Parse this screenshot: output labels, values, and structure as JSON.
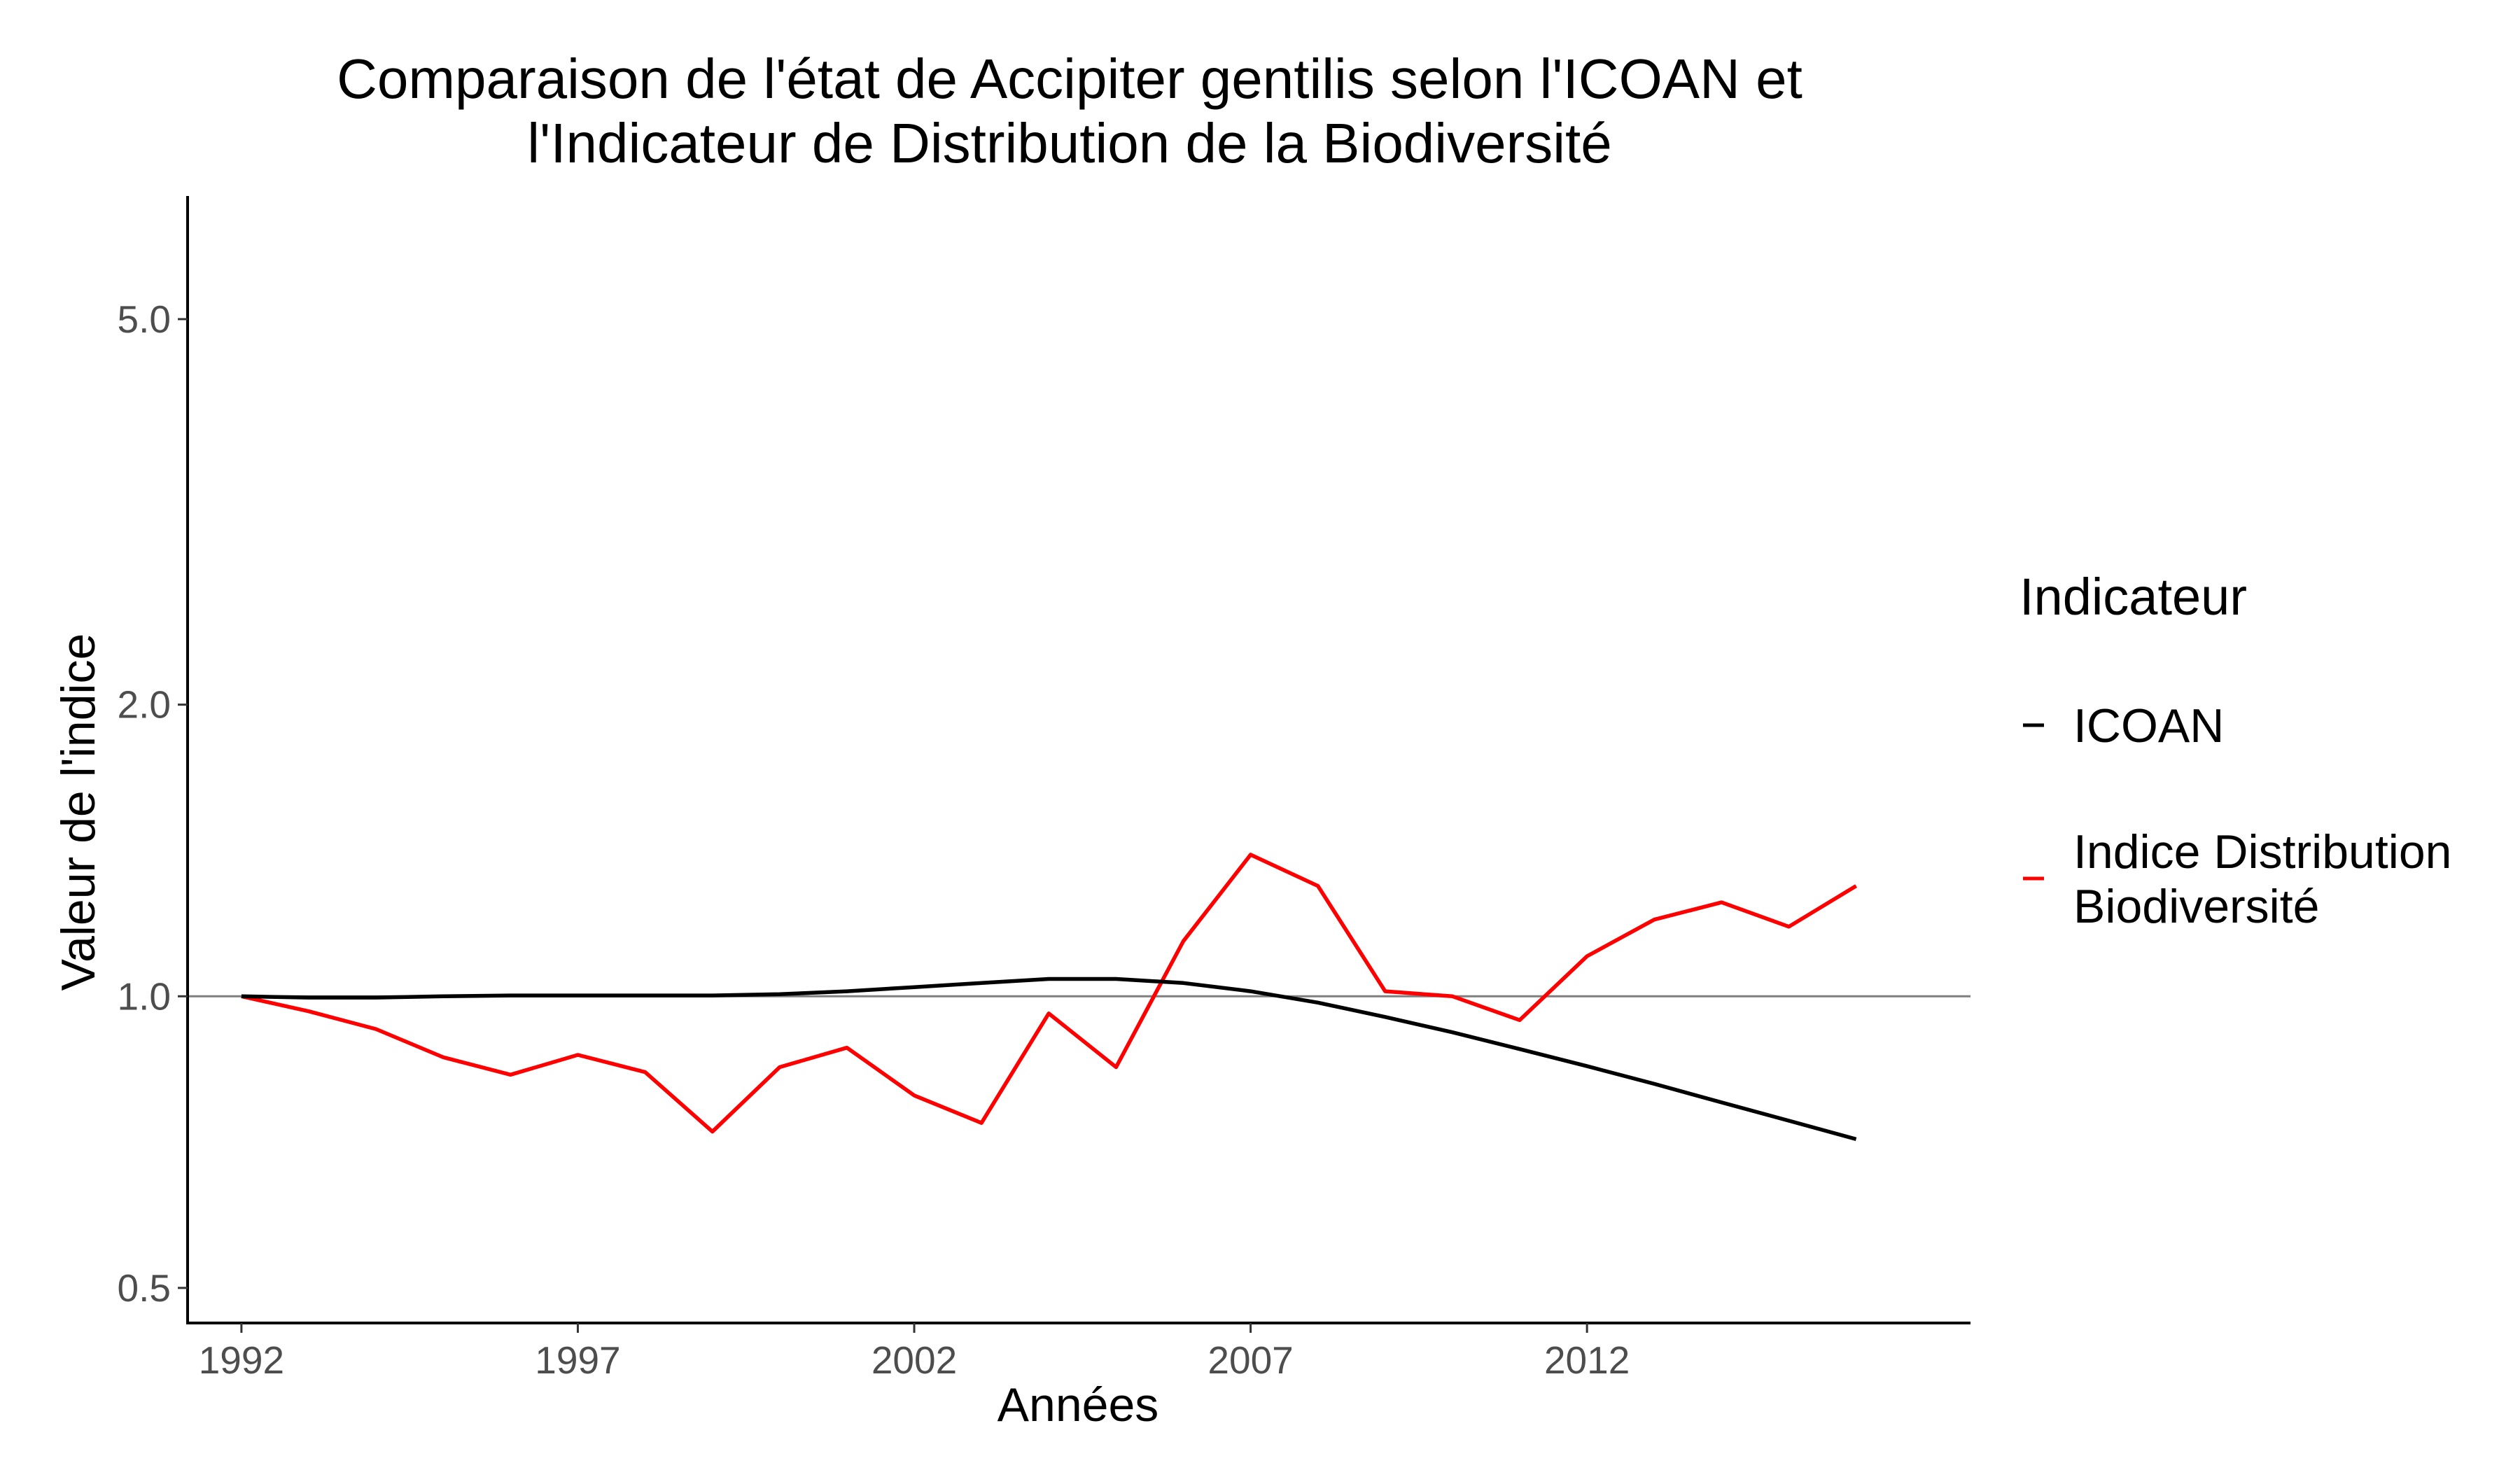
{
  "chart_data": {
    "type": "line",
    "title_lines": [
      "Comparaison de l'état de Accipiter gentilis selon l'ICOAN et",
      "l'Indicateur de Distribution de la Biodiversité"
    ],
    "xlabel": "Années",
    "ylabel": "Valeur de l'indice",
    "y_scale": "log",
    "xlim": [
      1991.2,
      2017.7
    ],
    "ylim": [
      0.46,
      6.7
    ],
    "x_ticks": [
      1992,
      1997,
      2002,
      2007,
      2012
    ],
    "x_tick_labels": [
      "1992",
      "1997",
      "2002",
      "2007",
      "2012"
    ],
    "y_ticks": [
      0.5,
      1.0,
      2.0,
      5.0
    ],
    "y_tick_labels": [
      "0.5",
      "1.0",
      "2.0",
      "5.0"
    ],
    "reference_line": 1.0,
    "grid": false,
    "legend": {
      "title": "Indicateur",
      "position": "right",
      "entries": [
        {
          "label_lines": [
            "ICOAN"
          ],
          "color": "#000000"
        },
        {
          "label_lines": [
            "Indice Distribution",
            "Biodiversité"
          ],
          "color": "#ff0000"
        }
      ]
    },
    "x": [
      1992,
      1993,
      1994,
      1995,
      1996,
      1997,
      1998,
      1999,
      2000,
      2001,
      2002,
      2003,
      2004,
      2005,
      2006,
      2007,
      2008,
      2009,
      2010,
      2011,
      2012,
      2013,
      2014,
      2015,
      2016
    ],
    "series": [
      {
        "name": "ICOAN",
        "color": "#000000",
        "values": [
          1.0,
          0.997,
          0.997,
          1.0,
          1.002,
          1.002,
          1.002,
          1.002,
          1.005,
          1.012,
          1.022,
          1.032,
          1.042,
          1.042,
          1.032,
          1.012,
          0.985,
          0.952,
          0.918,
          0.882,
          0.847,
          0.812,
          0.777,
          0.744,
          0.712
        ]
      },
      {
        "name": "Indice Distribution Biodiversité",
        "color": "#ff0000",
        "values": [
          1.0,
          0.965,
          0.925,
          0.865,
          0.83,
          0.87,
          0.835,
          0.725,
          0.845,
          0.885,
          0.79,
          0.74,
          0.96,
          0.845,
          1.14,
          1.4,
          1.3,
          1.012,
          1.0,
          0.945,
          1.1,
          1.2,
          1.25,
          1.18,
          1.3
        ]
      }
    ]
  }
}
